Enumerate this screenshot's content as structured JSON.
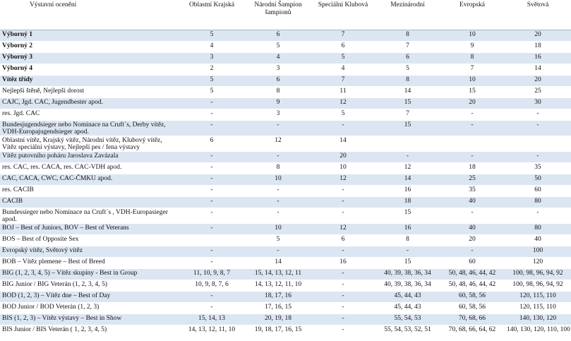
{
  "headers": [
    "Výstavní ocenění",
    "Oblastní Krajská",
    "Národní Šampion šampionů",
    "Speciální Klubová",
    "Mezinárodní",
    "Evropská",
    "Světová"
  ],
  "rows": [
    {
      "label": "Výborný 1",
      "values": [
        "5",
        "6",
        "7",
        "8",
        "10",
        "20"
      ],
      "shaded": true,
      "bold": true
    },
    {
      "label": "Výborný 2",
      "values": [
        "4",
        "5",
        "6",
        "7",
        "9",
        "18"
      ],
      "shaded": false,
      "bold": true
    },
    {
      "label": "Výborný 3",
      "values": [
        "3",
        "4",
        "5",
        "6",
        "8",
        "16"
      ],
      "shaded": true,
      "bold": true
    },
    {
      "label": "Výborný 4",
      "values": [
        "2",
        "3",
        "4",
        "5",
        "7",
        "14"
      ],
      "shaded": false,
      "bold": true
    },
    {
      "label": "Vítěz třídy",
      "values": [
        "5",
        "6",
        "7",
        "8",
        "10",
        "20"
      ],
      "shaded": true,
      "bold": true
    },
    {
      "label": "Nejlepší štěně, Nejlepší dorost",
      "values": [
        "5",
        "8",
        "11",
        "14",
        "15",
        "25"
      ],
      "shaded": false,
      "bold": false
    },
    {
      "label": "CAJC, Jgd. CAC, Jugendbester apod.",
      "values": [
        "-",
        "9",
        "12",
        "15",
        "20",
        "30"
      ],
      "shaded": true,
      "bold": false
    },
    {
      "label": "res. Jgd. CAC",
      "values": [
        "-",
        "3",
        "5",
        "7",
        "-",
        "-"
      ],
      "shaded": false,
      "bold": false
    },
    {
      "label": "Bundesjugendsieger nebo Nominace na Cruft´s, Derby vítěz, VDH-Europajugendsieger apod.",
      "values": [
        "-",
        "-",
        "-",
        "15",
        "-",
        "-"
      ],
      "shaded": true,
      "bold": false,
      "tall": true
    },
    {
      "label": "Oblastní vítěz, Krajský vítěz, Národní vítěz, Klubový vítěz, Vítěz speciální výstavy, Nejlepší pes / fena výstavy",
      "values": [
        "6",
        "12",
        "14",
        "",
        "",
        ""
      ],
      "shaded": false,
      "bold": false,
      "tall": true
    },
    {
      "label": "Vítěz putovního poháru Jaroslava Zavázala",
      "values": [
        "-",
        "-",
        "20",
        "-",
        "-",
        "-"
      ],
      "shaded": true,
      "bold": false
    },
    {
      "label": "res. CAC, res. CACA, res. CAC-VDH apod.",
      "values": [
        "-",
        "8",
        "10",
        "12",
        "18",
        "35"
      ],
      "shaded": false,
      "bold": false
    },
    {
      "label": "CAC, CACA, CWC, CAC-ČMKU apod.",
      "values": [
        "-",
        "10",
        "12",
        "14",
        "25",
        "50"
      ],
      "shaded": true,
      "bold": false
    },
    {
      "label": "res. CACIB",
      "values": [
        "-",
        "-",
        "-",
        "16",
        "35",
        "60"
      ],
      "shaded": false,
      "bold": false
    },
    {
      "label": "CACIB",
      "values": [
        "-",
        "-",
        "-",
        "18",
        "40",
        "80"
      ],
      "shaded": true,
      "bold": false
    },
    {
      "label": "Bundessieger nebo Nominace na Cruft´s , VDH-Europasieger apod.",
      "values": [
        "-",
        "-",
        "-",
        "15",
        "-",
        "-"
      ],
      "shaded": false,
      "bold": false,
      "tall": true
    },
    {
      "label": "BOJ – Best of Juniors, BOV – Best of Veterans",
      "values": [
        "-",
        "10",
        "12",
        "16",
        "40",
        "80"
      ],
      "shaded": true,
      "bold": false
    },
    {
      "label": "BOS – Best of Opposite Sex",
      "values": [
        "",
        "5",
        "6",
        "8",
        "20",
        "40"
      ],
      "shaded": false,
      "bold": false
    },
    {
      "label": "Evropský vítěz, Světový vítěz",
      "values": [
        "-",
        "-",
        "-",
        "-",
        "-",
        "100"
      ],
      "shaded": true,
      "bold": false
    },
    {
      "label": "BOB – Vítěz plemene – Best of Breed",
      "values": [
        "-",
        "14",
        "16",
        "15",
        "60",
        "120"
      ],
      "shaded": false,
      "bold": false
    },
    {
      "label": "BIG (1, 2, 3, 4, 5) – Vítěz skupiny - Best in Group",
      "values": [
        "11, 10, 9, 8, 7",
        "15, 14, 13, 12, 11",
        "-",
        "40, 39, 38, 36, 34",
        "50, 48, 46, 44, 42",
        "100, 98, 96, 94, 92"
      ],
      "shaded": true,
      "bold": false
    },
    {
      "label": "BIG Junior / BIG Veterán (1, 2, 3, 4, 5)",
      "values": [
        "10, 9, 8, 7, 6",
        "14, 13, 12, 11, 10",
        "-",
        "40, 39, 38, 36, 34",
        "50, 48, 46, 44, 42",
        "100, 98, 96, 94, 92"
      ],
      "shaded": false,
      "bold": false
    },
    {
      "label": "BOD (1, 2, 3) – Vítěz dne – Best of  Day",
      "values": [
        "-",
        "18, 17, 16",
        "-",
        "45, 44, 43",
        "60, 58, 56",
        "120, 115, 110"
      ],
      "shaded": true,
      "bold": false
    },
    {
      "label": "BOD Junior / BOD Veterán (1, 2, 3)",
      "values": [
        "-",
        "17, 16, 15",
        "-",
        "45, 44, 43",
        "60, 58, 56",
        "120, 115, 110"
      ],
      "shaded": false,
      "bold": false
    },
    {
      "label": "BIS (1, 2, 3) – Vítěz výstavy – Best in Show",
      "values": [
        "15, 14, 13",
        "20, 19, 18",
        "-",
        "55, 54, 53",
        "70, 68, 66",
        "140, 130, 120"
      ],
      "shaded": true,
      "bold": false
    },
    {
      "label": "BIS Junior / BIS Veterán ( 1, 2, 3, 4, 5)",
      "values": [
        "14, 13, 12, 11, 10",
        "19, 18, 17, 16, 15",
        "-",
        "55, 54, 53, 52, 51",
        "70, 68, 66, 64, 62",
        "140, 130, 120, 110, 100"
      ],
      "shaded": false,
      "bold": false
    }
  ]
}
